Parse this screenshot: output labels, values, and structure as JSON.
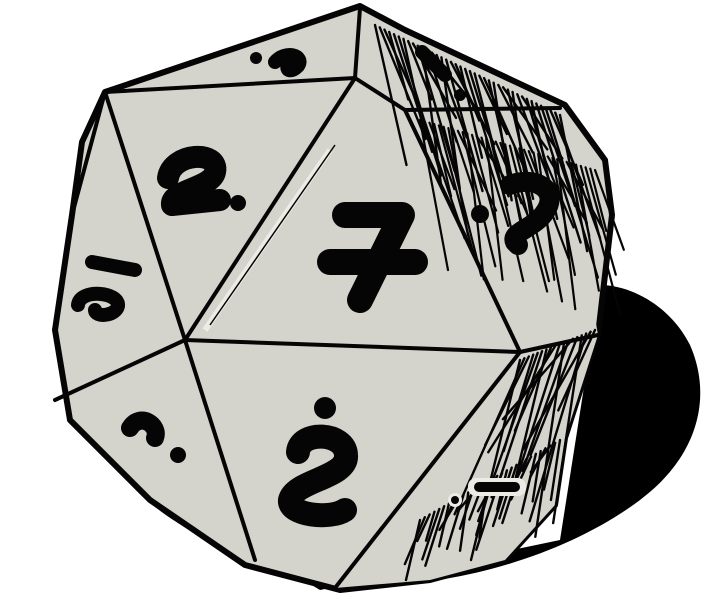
{
  "illustration": {
    "subject": "d20-die-icon",
    "colors": {
      "face": "#d4d3cc",
      "ink": "#050505",
      "shadow": "#000000",
      "highlight": "#ecebe5",
      "background": "#ffffff"
    }
  }
}
